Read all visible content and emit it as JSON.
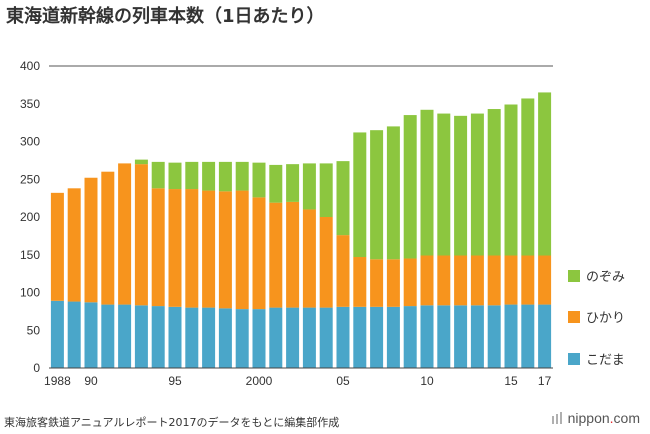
{
  "title": "東海道新幹線の列車本数（1日あたり）",
  "source": "東海旅客鉄道アニュアルレポート2017のデータをもとに編集部作成",
  "brand": {
    "name": "nippon",
    "suffix": ".com"
  },
  "chart_data": {
    "type": "bar",
    "stacked": true,
    "title": "東海道新幹線の列車本数（1日あたり）",
    "xlabel": "",
    "ylabel": "",
    "ylim": [
      0,
      400
    ],
    "yticks": [
      0,
      50,
      100,
      150,
      200,
      250,
      300,
      350,
      400
    ],
    "categories": [
      "1988",
      "1989",
      "1990",
      "1991",
      "1992",
      "1993",
      "1994",
      "1995",
      "1996",
      "1997",
      "1998",
      "1999",
      "2000",
      "2001",
      "2002",
      "2003",
      "2004",
      "2005",
      "2006",
      "2007",
      "2008",
      "2009",
      "2010",
      "2011",
      "2012",
      "2013",
      "2014",
      "2015",
      "2016",
      "2017"
    ],
    "xtick_labels": [
      {
        "index": 0,
        "label": "1988"
      },
      {
        "index": 2,
        "label": "90"
      },
      {
        "index": 7,
        "label": "95"
      },
      {
        "index": 12,
        "label": "2000"
      },
      {
        "index": 17,
        "label": "05"
      },
      {
        "index": 22,
        "label": "10"
      },
      {
        "index": 27,
        "label": "15"
      },
      {
        "index": 29,
        "label": "17"
      }
    ],
    "series": [
      {
        "name": "こだま",
        "color": "#4aa6c9",
        "values": [
          89,
          88,
          87,
          84,
          84,
          83,
          82,
          81,
          80,
          80,
          79,
          78,
          78,
          80,
          80,
          80,
          80,
          81,
          81,
          81,
          81,
          82,
          83,
          83,
          83,
          83,
          83,
          84,
          84,
          84
        ]
      },
      {
        "name": "ひかり",
        "color": "#f7941d",
        "values": [
          143,
          150,
          165,
          176,
          187,
          187,
          156,
          156,
          157,
          155,
          155,
          157,
          148,
          139,
          140,
          130,
          120,
          95,
          66,
          63,
          63,
          63,
          66,
          66,
          66,
          66,
          66,
          65,
          65,
          65
        ]
      },
      {
        "name": "のぞみ",
        "color": "#8cc63f",
        "values": [
          0,
          0,
          0,
          0,
          0,
          6,
          35,
          35,
          36,
          38,
          39,
          38,
          46,
          50,
          50,
          61,
          71,
          98,
          165,
          171,
          176,
          190,
          193,
          188,
          185,
          188,
          194,
          200,
          208,
          216
        ]
      }
    ],
    "legend": {
      "position": "right",
      "order": [
        "のぞみ",
        "ひかり",
        "こだま"
      ]
    },
    "grid": false,
    "top_line": true
  }
}
